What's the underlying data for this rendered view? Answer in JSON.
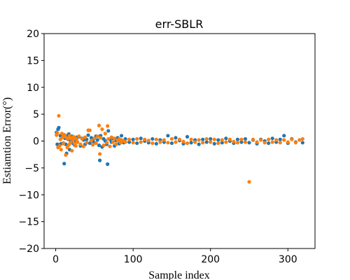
{
  "chart_data": {
    "type": "scatter",
    "title": "err-SBLR",
    "xlabel": "Sample index",
    "ylabel": "Estiamtion Error(°)",
    "xlim": [
      -15,
      335
    ],
    "ylim": [
      -20,
      20
    ],
    "xticks": [
      {
        "value": 0,
        "label": "0"
      },
      {
        "value": 100,
        "label": "100"
      },
      {
        "value": 200,
        "label": "200"
      },
      {
        "value": 300,
        "label": "300"
      }
    ],
    "yticks": [
      {
        "value": 20,
        "label": "20"
      },
      {
        "value": 15,
        "label": "15"
      },
      {
        "value": 10,
        "label": "10"
      },
      {
        "value": 5,
        "label": "5"
      },
      {
        "value": 0,
        "label": "0"
      },
      {
        "value": -5,
        "label": "−5"
      },
      {
        "value": -10,
        "label": "−10"
      },
      {
        "value": -15,
        "label": "−15"
      },
      {
        "value": -20,
        "label": "−20"
      }
    ],
    "grid": false,
    "legend": "none",
    "series": [
      {
        "color": "#1f77b4",
        "points": [
          [
            1,
            1.6
          ],
          [
            2,
            -0.6
          ],
          [
            3,
            2.2
          ],
          [
            4,
            2.5
          ],
          [
            5,
            -0.7
          ],
          [
            6,
            1.0
          ],
          [
            7,
            -0.5
          ],
          [
            8,
            1.2
          ],
          [
            9,
            0.9
          ],
          [
            10,
            -0.4
          ],
          [
            11,
            -4.2
          ],
          [
            12,
            0.5
          ],
          [
            13,
            -0.6
          ],
          [
            14,
            -2.3
          ],
          [
            15,
            1.0
          ],
          [
            16,
            0.3
          ],
          [
            17,
            1.3
          ],
          [
            18,
            -1.6
          ],
          [
            19,
            0.2
          ],
          [
            20,
            -0.3
          ],
          [
            21,
            0.9
          ],
          [
            22,
            0.6
          ],
          [
            23,
            -0.5
          ],
          [
            24,
            0.4
          ],
          [
            25,
            -0.8
          ],
          [
            26,
            0.1
          ],
          [
            27,
            0.7
          ],
          [
            28,
            -0.2
          ],
          [
            30,
            0.8
          ],
          [
            32,
            -0.9
          ],
          [
            34,
            0.5
          ],
          [
            36,
            0.2
          ],
          [
            38,
            -0.6
          ],
          [
            40,
            0.3
          ],
          [
            42,
            1.1
          ],
          [
            44,
            -0.4
          ],
          [
            46,
            0.6
          ],
          [
            48,
            0.0
          ],
          [
            50,
            -0.3
          ],
          [
            52,
            0.9
          ],
          [
            54,
            0.2
          ],
          [
            56,
            -0.8
          ],
          [
            57,
            -3.6
          ],
          [
            58,
            1.0
          ],
          [
            60,
            -1.1
          ],
          [
            62,
            0.4
          ],
          [
            64,
            0.0
          ],
          [
            66,
            -0.6
          ],
          [
            67,
            -4.3
          ],
          [
            68,
            1.9
          ],
          [
            70,
            0.3
          ],
          [
            72,
            -0.2
          ],
          [
            74,
            0.5
          ],
          [
            76,
            -0.9
          ],
          [
            78,
            0.1
          ],
          [
            80,
            0.6
          ],
          [
            82,
            -0.5
          ],
          [
            84,
            0.2
          ],
          [
            85,
            1.0
          ],
          [
            88,
            -0.3
          ],
          [
            90,
            0.4
          ],
          [
            95,
            -0.2
          ],
          [
            100,
            0.3
          ],
          [
            105,
            -0.4
          ],
          [
            110,
            0.5
          ],
          [
            115,
            0.0
          ],
          [
            120,
            -0.3
          ],
          [
            125,
            0.4
          ],
          [
            130,
            -0.5
          ],
          [
            135,
            0.2
          ],
          [
            140,
            -0.2
          ],
          [
            145,
            1.0
          ],
          [
            150,
            -0.4
          ],
          [
            155,
            0.6
          ],
          [
            160,
            0.1
          ],
          [
            165,
            -0.5
          ],
          [
            170,
            0.8
          ],
          [
            175,
            -0.3
          ],
          [
            180,
            0.2
          ],
          [
            185,
            -0.6
          ],
          [
            190,
            0.3
          ],
          [
            195,
            -0.2
          ],
          [
            200,
            0.4
          ],
          [
            205,
            -0.5
          ],
          [
            210,
            0.2
          ],
          [
            215,
            -0.3
          ],
          [
            220,
            0.5
          ],
          [
            225,
            0.0
          ],
          [
            230,
            -0.4
          ],
          [
            235,
            0.3
          ],
          [
            240,
            -0.2
          ],
          [
            245,
            0.4
          ],
          [
            250,
            -0.3
          ],
          [
            255,
            0.2
          ],
          [
            260,
            -0.5
          ],
          [
            265,
            0.3
          ],
          [
            270,
            0.0
          ],
          [
            275,
            -0.4
          ],
          [
            280,
            0.5
          ],
          [
            285,
            -0.2
          ],
          [
            290,
            0.3
          ],
          [
            295,
            1.0
          ],
          [
            300,
            -0.4
          ],
          [
            305,
            0.4
          ],
          [
            310,
            -0.2
          ],
          [
            315,
            0.2
          ],
          [
            319,
            -0.3
          ]
        ]
      },
      {
        "color": "#ff7f0e",
        "points": [
          [
            1,
            1.1
          ],
          [
            2,
            1.5
          ],
          [
            3,
            -1.2
          ],
          [
            4,
            4.7
          ],
          [
            5,
            -0.9
          ],
          [
            6,
            0.3
          ],
          [
            7,
            -1.6
          ],
          [
            8,
            1.4
          ],
          [
            9,
            0.7
          ],
          [
            10,
            -0.5
          ],
          [
            11,
            1.2
          ],
          [
            12,
            0.9
          ],
          [
            13,
            -2.6
          ],
          [
            14,
            0.6
          ],
          [
            15,
            -1.2
          ],
          [
            16,
            0.4
          ],
          [
            17,
            -0.7
          ],
          [
            18,
            1.0
          ],
          [
            19,
            -0.3
          ],
          [
            20,
            0.5
          ],
          [
            21,
            -1.8
          ],
          [
            22,
            0.2
          ],
          [
            23,
            0.8
          ],
          [
            24,
            -0.4
          ],
          [
            25,
            0.6
          ],
          [
            26,
            -0.9
          ],
          [
            27,
            0.3
          ],
          [
            28,
            -0.2
          ],
          [
            30,
            0.9
          ],
          [
            32,
            -0.6
          ],
          [
            34,
            0.4
          ],
          [
            36,
            -1.0
          ],
          [
            38,
            0.7
          ],
          [
            40,
            -0.3
          ],
          [
            42,
            2.0
          ],
          [
            44,
            2.0
          ],
          [
            46,
            0.1
          ],
          [
            48,
            -0.7
          ],
          [
            50,
            0.5
          ],
          [
            52,
            -0.4
          ],
          [
            54,
            0.9
          ],
          [
            56,
            2.9
          ],
          [
            57,
            -2.4
          ],
          [
            58,
            0.6
          ],
          [
            60,
            2.2
          ],
          [
            62,
            -0.8
          ],
          [
            64,
            1.4
          ],
          [
            66,
            -0.3
          ],
          [
            67,
            2.8
          ],
          [
            68,
            0.4
          ],
          [
            70,
            -1.0
          ],
          [
            72,
            0.7
          ],
          [
            74,
            -0.2
          ],
          [
            76,
            0.5
          ],
          [
            78,
            -0.6
          ],
          [
            80,
            0.1
          ],
          [
            82,
            0.4
          ],
          [
            84,
            -0.3
          ],
          [
            85,
            0.2
          ],
          [
            88,
            0.0
          ],
          [
            90,
            -0.2
          ],
          [
            95,
            0.3
          ],
          [
            100,
            -0.3
          ],
          [
            105,
            0.4
          ],
          [
            110,
            -0.2
          ],
          [
            115,
            0.3
          ],
          [
            120,
            0.1
          ],
          [
            125,
            -0.4
          ],
          [
            130,
            0.3
          ],
          [
            135,
            -0.2
          ],
          [
            140,
            0.2
          ],
          [
            145,
            -0.3
          ],
          [
            150,
            0.4
          ],
          [
            155,
            -0.2
          ],
          [
            160,
            0.3
          ],
          [
            165,
            -0.1
          ],
          [
            170,
            -0.4
          ],
          [
            175,
            0.3
          ],
          [
            180,
            -0.2
          ],
          [
            185,
            0.2
          ],
          [
            190,
            -0.3
          ],
          [
            195,
            0.4
          ],
          [
            200,
            -0.2
          ],
          [
            205,
            0.3
          ],
          [
            210,
            -0.4
          ],
          [
            215,
            0.2
          ],
          [
            220,
            -0.2
          ],
          [
            225,
            0.3
          ],
          [
            230,
            -0.1
          ],
          [
            235,
            -0.3
          ],
          [
            240,
            0.3
          ],
          [
            245,
            -0.2
          ],
          [
            250,
            -7.6
          ],
          [
            255,
            0.3
          ],
          [
            260,
            -0.2
          ],
          [
            265,
            0.2
          ],
          [
            270,
            -0.3
          ],
          [
            275,
            0.3
          ],
          [
            280,
            -0.2
          ],
          [
            285,
            0.2
          ],
          [
            290,
            -0.3
          ],
          [
            295,
            0.2
          ],
          [
            300,
            -0.2
          ],
          [
            305,
            0.3
          ],
          [
            310,
            -0.3
          ],
          [
            315,
            0.2
          ],
          [
            319,
            0.4
          ]
        ]
      }
    ]
  }
}
